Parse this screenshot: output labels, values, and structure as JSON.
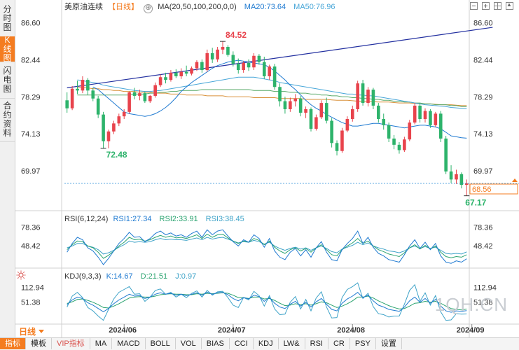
{
  "leftnav": [
    {
      "label": "分时图",
      "active": false
    },
    {
      "label": "K线图",
      "active": true
    },
    {
      "label": "闪电图",
      "active": false
    },
    {
      "label": "合约资料",
      "active": false
    }
  ],
  "header": {
    "instrument": "美原油连续",
    "period_badge": "【日线】",
    "ma_label": "MA(20,50,100,200,0,0)",
    "ma20": "MA20:73.64",
    "ma50": "MA50:76.96",
    "icon_settings": "⊕"
  },
  "rsi_header": {
    "label": "RSI(6,12,24)",
    "rsi1": "RSI1:27.34",
    "rsi2": "RSI2:33.91",
    "rsi3": "RSI3:38.45"
  },
  "kdj_header": {
    "label": "KDJ(9,3,3)",
    "k": "K:14.67",
    "d": "D:21.51",
    "j": "J:0.97"
  },
  "period_tag": "日线",
  "watermark": "1QH.CN",
  "bottom_tabs": [
    {
      "label": "指标",
      "active": true
    },
    {
      "label": "模板"
    },
    {
      "label": "VIP指标",
      "accent": true
    },
    {
      "label": "MA"
    },
    {
      "label": "MACD"
    },
    {
      "label": "BOLL"
    },
    {
      "label": "VOL"
    },
    {
      "label": "BIAS"
    },
    {
      "label": "CCI"
    },
    {
      "label": "KDJ"
    },
    {
      "label": "LW&"
    },
    {
      "label": "RSI"
    },
    {
      "label": "CR"
    },
    {
      "label": "PSY"
    },
    {
      "label": "设置"
    }
  ],
  "colors": {
    "up": "#e8434c",
    "down": "#2db36b",
    "ma20": "#1f7ad1",
    "ma50": "#47a6d8",
    "ma100": "#5aaa6a",
    "ma200": "#d9913a",
    "trend": "#2330a0",
    "last": "#f47c20"
  },
  "chart_data": {
    "type": "candlestick",
    "main": {
      "yticks": [
        86.6,
        82.44,
        78.29,
        74.13,
        69.97
      ],
      "ylim": [
        66.2,
        87.6
      ],
      "last_price": "68.56",
      "high_label": "84.52",
      "low_label_1": "72.48",
      "low_label_2": "67.17",
      "candles": [
        [
          77.9,
          78.8,
          76.5,
          77.0
        ],
        [
          77.0,
          79.5,
          76.8,
          79.2
        ],
        [
          79.2,
          80.1,
          78.6,
          79.0
        ],
        [
          79.0,
          80.6,
          78.7,
          80.2
        ],
        [
          80.2,
          80.4,
          78.5,
          79.0
        ],
        [
          79.0,
          79.3,
          77.8,
          78.1
        ],
        [
          78.1,
          78.4,
          75.9,
          76.3
        ],
        [
          76.3,
          76.6,
          72.5,
          73.3
        ],
        [
          73.3,
          74.6,
          72.5,
          74.4
        ],
        [
          74.4,
          75.6,
          74.1,
          75.3
        ],
        [
          75.3,
          76.4,
          75.0,
          76.1
        ],
        [
          76.1,
          76.9,
          75.8,
          76.6
        ],
        [
          76.6,
          78.9,
          76.4,
          78.8
        ],
        [
          78.8,
          79.3,
          78.0,
          78.4
        ],
        [
          78.4,
          79.1,
          77.9,
          78.7
        ],
        [
          78.7,
          78.9,
          77.6,
          77.8
        ],
        [
          77.8,
          78.5,
          77.6,
          78.4
        ],
        [
          78.4,
          79.9,
          78.2,
          79.6
        ],
        [
          79.6,
          80.8,
          79.4,
          80.5
        ],
        [
          80.5,
          81.0,
          79.8,
          80.2
        ],
        [
          80.2,
          81.3,
          80.0,
          81.0
        ],
        [
          81.0,
          81.4,
          80.4,
          80.6
        ],
        [
          80.6,
          81.5,
          80.3,
          81.1
        ],
        [
          81.1,
          81.8,
          80.6,
          80.9
        ],
        [
          80.9,
          81.7,
          80.7,
          81.5
        ],
        [
          81.5,
          82.4,
          81.2,
          82.2
        ],
        [
          82.2,
          82.5,
          81.0,
          81.3
        ],
        [
          81.3,
          83.6,
          81.1,
          83.2
        ],
        [
          83.2,
          83.8,
          82.1,
          82.5
        ],
        [
          82.5,
          83.9,
          82.2,
          83.6
        ],
        [
          83.6,
          84.52,
          83.1,
          83.9
        ],
        [
          83.9,
          84.1,
          82.8,
          83.0
        ],
        [
          83.0,
          83.4,
          81.7,
          82.0
        ],
        [
          82.0,
          82.6,
          80.9,
          81.3
        ],
        [
          81.3,
          82.3,
          81.0,
          82.1
        ],
        [
          82.1,
          82.5,
          81.2,
          81.6
        ],
        [
          81.6,
          83.2,
          81.3,
          82.9
        ],
        [
          82.9,
          83.1,
          81.9,
          82.2
        ],
        [
          82.2,
          82.8,
          80.3,
          80.6
        ],
        [
          80.6,
          81.9,
          80.2,
          81.7
        ],
        [
          81.7,
          82.0,
          79.1,
          79.4
        ],
        [
          79.4,
          79.8,
          77.2,
          77.8
        ],
        [
          77.8,
          78.3,
          76.4,
          76.9
        ],
        [
          76.9,
          78.2,
          76.6,
          77.8
        ],
        [
          77.8,
          78.6,
          77.2,
          78.1
        ],
        [
          78.1,
          78.4,
          76.1,
          76.5
        ],
        [
          76.5,
          77.2,
          75.9,
          76.9
        ],
        [
          76.9,
          77.1,
          74.4,
          74.7
        ],
        [
          74.7,
          76.3,
          74.5,
          76.0
        ],
        [
          76.0,
          77.9,
          75.8,
          77.6
        ],
        [
          77.6,
          78.2,
          75.3,
          75.6
        ],
        [
          75.6,
          75.9,
          72.6,
          73.1
        ],
        [
          73.1,
          73.4,
          71.7,
          72.2
        ],
        [
          72.2,
          74.8,
          72.0,
          74.5
        ],
        [
          74.5,
          76.1,
          74.3,
          75.8
        ],
        [
          75.8,
          77.3,
          75.5,
          76.9
        ],
        [
          76.9,
          80.1,
          76.6,
          79.8
        ],
        [
          79.8,
          80.2,
          77.3,
          77.6
        ],
        [
          77.6,
          79.4,
          77.2,
          79.1
        ],
        [
          79.1,
          79.3,
          76.9,
          77.3
        ],
        [
          77.3,
          77.6,
          75.4,
          75.8
        ],
        [
          75.8,
          76.4,
          74.6,
          75.1
        ],
        [
          75.1,
          75.4,
          73.2,
          73.6
        ],
        [
          73.6,
          74.0,
          72.4,
          72.9
        ],
        [
          72.9,
          73.2,
          71.9,
          72.3
        ],
        [
          72.3,
          73.8,
          72.1,
          73.5
        ],
        [
          73.5,
          75.7,
          73.3,
          75.4
        ],
        [
          75.4,
          77.6,
          75.2,
          77.3
        ],
        [
          77.3,
          77.6,
          75.4,
          75.8
        ],
        [
          75.8,
          77.0,
          75.4,
          76.7
        ],
        [
          76.7,
          76.9,
          74.8,
          75.1
        ],
        [
          75.1,
          76.6,
          74.9,
          76.4
        ],
        [
          76.4,
          76.7,
          73.2,
          73.6
        ],
        [
          73.6,
          73.9,
          69.6,
          69.9
        ],
        [
          69.9,
          70.6,
          68.6,
          69.0
        ],
        [
          69.0,
          70.1,
          68.5,
          69.6
        ],
        [
          69.6,
          69.8,
          68.0,
          68.4
        ],
        [
          68.4,
          69.0,
          67.17,
          68.56
        ]
      ],
      "ma20": [
        null,
        null,
        null,
        null,
        null,
        79.4,
        79.1,
        78.6,
        78.1,
        77.6,
        77.1,
        76.6,
        76.4,
        76.3,
        76.2,
        76.1,
        76.2,
        76.4,
        76.7,
        77.1,
        77.6,
        78.2,
        78.9,
        79.4,
        79.9,
        80.3,
        80.7,
        81.1,
        81.5,
        81.8,
        82.0,
        82.2,
        82.3,
        82.4,
        82.3,
        82.2,
        82.1,
        82.0,
        81.9,
        81.6,
        81.2,
        80.7,
        80.2,
        79.6,
        79.1,
        78.5,
        77.9,
        77.4,
        77.0,
        76.7,
        76.3,
        76.0,
        75.7,
        75.4,
        75.2,
        75.0,
        75.0,
        75.1,
        75.2,
        75.3,
        75.3,
        75.2,
        75.1,
        75.0,
        74.9,
        74.8,
        74.9,
        75.0,
        75.1,
        75.1,
        75.0,
        74.9,
        74.7,
        74.3,
        73.9,
        73.8,
        73.7,
        73.64
      ],
      "ma50": [
        null,
        null,
        80.2,
        80.1,
        80.0,
        79.9,
        79.8,
        79.6,
        79.5,
        79.4,
        79.3,
        79.2,
        79.1,
        79.0,
        78.95,
        78.9,
        78.9,
        78.95,
        79.0,
        79.1,
        79.2,
        79.3,
        79.4,
        79.5,
        79.6,
        79.7,
        79.8,
        79.9,
        80.0,
        80.1,
        80.2,
        80.3,
        80.4,
        80.5,
        80.5,
        80.5,
        80.5,
        80.4,
        80.3,
        80.2,
        80.1,
        79.9,
        79.8,
        79.7,
        79.6,
        79.5,
        79.4,
        79.3,
        79.2,
        79.1,
        79.0,
        78.9,
        78.8,
        78.7,
        78.6,
        78.6,
        78.5,
        78.5,
        78.4,
        78.4,
        78.3,
        78.2,
        78.1,
        78.0,
        77.9,
        77.8,
        77.7,
        77.6,
        77.5,
        77.4,
        77.35,
        77.3,
        77.25,
        77.2,
        77.1,
        77.05,
        77.0,
        76.96
      ],
      "ma100": [
        null,
        null,
        78.5,
        78.5,
        78.5,
        78.5,
        78.5,
        78.5,
        78.5,
        78.5,
        78.5,
        78.5,
        78.5,
        78.6,
        78.6,
        78.6,
        78.7,
        78.7,
        78.8,
        78.8,
        78.9,
        78.9,
        79.0,
        79.0,
        79.0,
        79.0,
        79.1,
        79.1,
        79.1,
        79.1,
        79.1,
        79.1,
        79.1,
        79.1,
        79.1,
        79.1,
        79.0,
        79.0,
        79.0,
        79.0,
        78.9,
        78.9,
        78.9,
        78.8,
        78.8,
        78.7,
        78.7,
        78.6,
        78.6,
        78.5,
        78.5,
        78.4,
        78.4,
        78.3,
        78.3,
        78.2,
        78.2,
        78.1,
        78.1,
        78.0,
        78.0,
        77.9,
        77.9,
        77.8,
        77.8,
        77.7,
        77.7,
        77.6,
        77.6,
        77.5,
        77.5,
        77.4,
        77.4,
        77.4,
        77.3,
        77.3,
        77.2,
        77.2
      ],
      "ma200": [
        null,
        null,
        79.4,
        79.3,
        79.3,
        79.2,
        79.2,
        79.1,
        79.1,
        79.0,
        79.0,
        78.9,
        78.9,
        78.9,
        78.8,
        78.8,
        78.8,
        78.7,
        78.7,
        78.7,
        78.6,
        78.6,
        78.6,
        78.5,
        78.5,
        78.5,
        78.5,
        78.4,
        78.4,
        78.4,
        78.4,
        78.3,
        78.3,
        78.3,
        78.3,
        78.3,
        78.2,
        78.2,
        78.2,
        78.2,
        78.2,
        78.1,
        78.1,
        78.1,
        78.1,
        78.1,
        78.0,
        78.0,
        78.0,
        78.0,
        78.0,
        77.95,
        77.9,
        77.9,
        77.9,
        77.85,
        77.8,
        77.8,
        77.8,
        77.75,
        77.7,
        77.7,
        77.7,
        77.65,
        77.6,
        77.6,
        77.6,
        77.55,
        77.5,
        77.5,
        77.5,
        77.45,
        77.4,
        77.4,
        77.4,
        77.35,
        77.3,
        77.3
      ],
      "trendline": [
        [
          0,
          79.3
        ],
        [
          82,
          86.1
        ]
      ]
    },
    "rsi": {
      "yticks": [
        78.36,
        48.42
      ],
      "rsi1": [
        38,
        52,
        62,
        58,
        45,
        40,
        30,
        18,
        28,
        40,
        52,
        60,
        70,
        62,
        63,
        55,
        60,
        68,
        72,
        66,
        69,
        64,
        66,
        62,
        68,
        72,
        62,
        74,
        66,
        72,
        74,
        64,
        55,
        48,
        58,
        54,
        66,
        60,
        46,
        60,
        40,
        30,
        26,
        38,
        44,
        32,
        42,
        30,
        45,
        55,
        38,
        26,
        24,
        42,
        52,
        60,
        72,
        52,
        62,
        46,
        36,
        32,
        26,
        24,
        22,
        34,
        48,
        58,
        44,
        54,
        42,
        52,
        32,
        22,
        20,
        24,
        22,
        27.34
      ],
      "rsi2": [
        42,
        50,
        56,
        55,
        48,
        45,
        38,
        28,
        33,
        40,
        48,
        54,
        62,
        58,
        59,
        56,
        58,
        62,
        65,
        62,
        64,
        61,
        62,
        60,
        63,
        66,
        60,
        67,
        62,
        66,
        67,
        61,
        56,
        52,
        56,
        54,
        60,
        57,
        50,
        56,
        46,
        40,
        36,
        42,
        45,
        40,
        44,
        38,
        45,
        50,
        42,
        34,
        32,
        42,
        48,
        53,
        60,
        52,
        56,
        48,
        42,
        39,
        35,
        33,
        31,
        37,
        45,
        50,
        43,
        49,
        43,
        48,
        38,
        31,
        29,
        31,
        30,
        33.91
      ],
      "rsi3": [
        45,
        48,
        52,
        52,
        48,
        46,
        42,
        35,
        37,
        41,
        46,
        50,
        56,
        54,
        55,
        54,
        55,
        58,
        60,
        58,
        59,
        58,
        58,
        57,
        59,
        61,
        58,
        62,
        59,
        61,
        62,
        59,
        56,
        53,
        55,
        54,
        57,
        55,
        51,
        54,
        48,
        44,
        41,
        44,
        46,
        43,
        45,
        41,
        45,
        48,
        44,
        39,
        37,
        43,
        46,
        49,
        54,
        50,
        53,
        48,
        45,
        43,
        40,
        39,
        37,
        40,
        45,
        48,
        44,
        47,
        44,
        46,
        41,
        36,
        35,
        36,
        35,
        38.45
      ]
    },
    "kdj": {
      "yticks": [
        112.94,
        51.38
      ],
      "k": [
        40,
        60,
        72,
        66,
        48,
        38,
        24,
        10,
        24,
        44,
        60,
        72,
        84,
        76,
        78,
        66,
        72,
        84,
        90,
        84,
        88,
        80,
        84,
        78,
        84,
        90,
        80,
        92,
        84,
        90,
        92,
        82,
        66,
        56,
        70,
        64,
        80,
        74,
        54,
        70,
        46,
        30,
        24,
        42,
        54,
        34,
        50,
        30,
        52,
        66,
        42,
        20,
        14,
        46,
        64,
        76,
        92,
        70,
        80,
        56,
        38,
        30,
        20,
        16,
        12,
        30,
        56,
        72,
        50,
        66,
        46,
        62,
        34,
        14,
        8,
        14,
        12,
        14.67
      ],
      "d": [
        45,
        52,
        62,
        64,
        58,
        50,
        40,
        28,
        26,
        34,
        44,
        56,
        68,
        72,
        74,
        72,
        72,
        76,
        82,
        84,
        86,
        84,
        84,
        82,
        82,
        86,
        84,
        88,
        86,
        88,
        90,
        88,
        80,
        70,
        70,
        66,
        72,
        72,
        64,
        66,
        58,
        46,
        36,
        38,
        44,
        40,
        44,
        38,
        44,
        52,
        48,
        38,
        28,
        34,
        44,
        56,
        72,
        72,
        76,
        68,
        56,
        46,
        36,
        28,
        22,
        24,
        34,
        46,
        48,
        54,
        50,
        54,
        46,
        34,
        24,
        20,
        18,
        21.51
      ],
      "j": [
        30,
        76,
        92,
        70,
        28,
        14,
        -8,
        -26,
        20,
        64,
        92,
        104,
        116,
        84,
        86,
        54,
        72,
        100,
        106,
        84,
        92,
        72,
        84,
        70,
        88,
        98,
        72,
        100,
        80,
        94,
        96,
        70,
        38,
        28,
        70,
        60,
        96,
        78,
        34,
        78,
        22,
        -2,
        0,
        50,
        74,
        22,
        62,
        14,
        68,
        94,
        30,
        -16,
        -14,
        70,
        104,
        116,
        132,
        66,
        88,
        32,
        2,
        -2,
        -12,
        -8,
        -8,
        42,
        100,
        124,
        54,
        90,
        38,
        78,
        10,
        -26,
        -24,
        2,
        0,
        0.97
      ]
    },
    "xticks": [
      {
        "i": 11,
        "label": "2024/06"
      },
      {
        "i": 32,
        "label": "2024/07"
      },
      {
        "i": 55,
        "label": "2024/08"
      },
      {
        "i": 78,
        "label": "2024/09"
      }
    ]
  }
}
